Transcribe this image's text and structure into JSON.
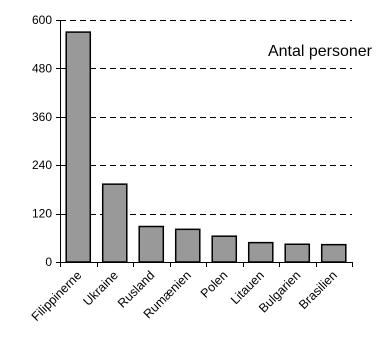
{
  "chart_data": {
    "type": "bar",
    "title": "",
    "xlabel": "",
    "ylabel": "",
    "annotation": "Antal personer",
    "categories": [
      "Filippinerne",
      "Ukraine",
      "Rusland",
      "Rumænien",
      "Polen",
      "Litauen",
      "Bulgarien",
      "Brasilien"
    ],
    "values": [
      570,
      193,
      88,
      81,
      64,
      48,
      44,
      43
    ],
    "ylim": [
      0,
      600
    ],
    "yticks": [
      "0",
      "120",
      "240",
      "360",
      "480",
      "600"
    ],
    "ytick_values": [
      0,
      120,
      240,
      360,
      480,
      600
    ],
    "grid": true,
    "grid_style": "dashed",
    "bar_color": "#999999",
    "bar_edge_color": "#000000"
  }
}
